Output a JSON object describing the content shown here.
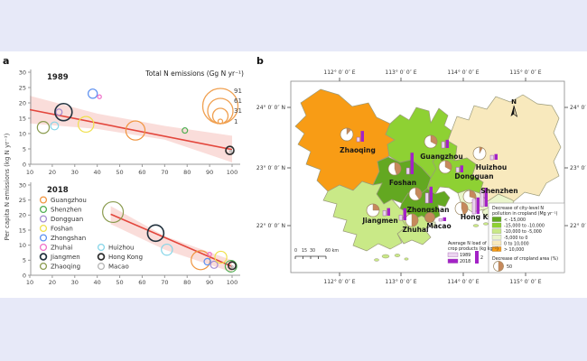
{
  "page": {
    "background": "#e7e9f8",
    "figure_background": "#ffffff"
  },
  "panel_a": {
    "label": "a",
    "ylabel": "Per capita N emissions (kg N yr⁻¹)",
    "xlabel": "Urbanization rate (%)",
    "size_legend": {
      "title": "Total N emissions (Gg N yr⁻¹)",
      "values": [
        91,
        61,
        31,
        1
      ],
      "arc_color": "#f0a050"
    },
    "trend_color": "#e3463c",
    "band_color": "#f8d2cd",
    "legend": {
      "col1": [
        "Guangzhou",
        "Shenzhen",
        "Dongguan",
        "Foshan",
        "Zhongshan",
        "Zhuhai",
        "Jiangmen",
        "Zhaoqing"
      ],
      "col2": [
        "Huizhou",
        "Hong Kong",
        "Macao"
      ]
    }
  },
  "city_colors": {
    "Guangzhou": "#f0953f",
    "Shenzhen": "#4fae52",
    "Dongguan": "#a58cd0",
    "Foshan": "#f0e04e",
    "Zhongshan": "#5b8ff0",
    "Zhuhai": "#ef6fc9",
    "Jiangmen": "#22323e",
    "Zhaoqing": "#8a9b4e",
    "Huizhou": "#86d5e8",
    "Hong Kong": "#2d2d2d",
    "Macao": "#b5b5b5"
  },
  "panel_b": {
    "label": "b",
    "lon_labels": [
      "112° 0′ 0″ E",
      "113° 0′ 0″ E",
      "114° 0′ 0″ E",
      "115° 0′ 0″ E"
    ],
    "lat_labels": [
      "24° 0′ 0″ N",
      "23° 0′ 0″ N",
      "22° 0′ 0″ N"
    ],
    "north_label": "N",
    "scale_bar_labels": [
      "0",
      "15",
      "30",
      "60 km"
    ],
    "legend_pollution": {
      "title_lines": [
        "Decrease of city-level N",
        "pollution in cropland (Mg yr⁻¹)"
      ],
      "items": [
        {
          "label": "< -15,000",
          "color": "#63a821"
        },
        {
          "label": "-15,000 to -10,000",
          "color": "#8ed133"
        },
        {
          "label": "-10,000 to -5,000",
          "color": "#c9e987"
        },
        {
          "label": "-5,000 to 0",
          "color": "#eaf5cb"
        },
        {
          "label": "0 to 10,000",
          "color": "#f8e9bd"
        },
        {
          "label": "> 10,000",
          "color": "#f89c15"
        }
      ]
    },
    "legend_cropland": {
      "title": "Decrease of cropland area (%)",
      "ref_label": "50",
      "pie_color": "#c6895c"
    },
    "legend_n_load": {
      "title_lines": [
        "Average N load of",
        "crop products (kg kg⁻¹)"
      ],
      "years": [
        {
          "label": "1989",
          "color": "#ecd4f0"
        },
        {
          "label": "2018",
          "color": "#a322c6"
        }
      ],
      "ref_label": "2"
    }
  },
  "chart_data": [
    {
      "type": "scatter",
      "title": "1989",
      "xlabel": "Urbanization rate (%)",
      "ylabel": "Per capita N emissions (kg N yr⁻¹)",
      "xlim": [
        10,
        100
      ],
      "ylim": [
        0,
        30
      ],
      "xticks": [
        10,
        20,
        30,
        40,
        50,
        60,
        70,
        80,
        90,
        100
      ],
      "yticks": [
        0,
        5,
        10,
        15,
        20,
        25,
        30
      ],
      "size_variable": "Total N emissions (Gg N yr⁻¹)",
      "trend": {
        "x1": 10,
        "y1": 17.8,
        "x2": 100,
        "y2": 4.8
      },
      "band": [
        [
          10,
          22.3
        ],
        [
          40,
          16.5
        ],
        [
          70,
          12.5
        ],
        [
          100,
          9.3
        ],
        [
          100,
          0.6
        ],
        [
          70,
          8.0
        ],
        [
          40,
          11.5
        ],
        [
          10,
          13.3
        ]
      ],
      "points": [
        {
          "city": "Zhaoqing",
          "x": 16,
          "y": 12,
          "size": 30
        },
        {
          "city": "Huizhou",
          "x": 21,
          "y": 12.5,
          "size": 13
        },
        {
          "city": "Dongguan",
          "x": 23,
          "y": 17,
          "size": 8
        },
        {
          "city": "Jiangmen",
          "x": 25,
          "y": 17,
          "size": 62
        },
        {
          "city": "Foshan",
          "x": 35,
          "y": 13,
          "size": 52
        },
        {
          "city": "Zhongshan",
          "x": 38,
          "y": 23,
          "size": 18
        },
        {
          "city": "Zhuhai",
          "x": 41,
          "y": 22,
          "size": 3
        },
        {
          "city": "Guangzhou",
          "x": 57,
          "y": 11,
          "size": 78
        },
        {
          "city": "Shenzhen",
          "x": 79,
          "y": 11,
          "size": 6
        },
        {
          "city": "Hong Kong",
          "x": 99,
          "y": 4.5,
          "size": 14
        },
        {
          "city": "Macao",
          "x": 99.5,
          "y": 4.2,
          "size": 1
        }
      ]
    },
    {
      "type": "scatter",
      "title": "2018",
      "xlabel": "Urbanization rate (%)",
      "ylabel": "Per capita N emissions (kg N yr⁻¹)",
      "xlim": [
        10,
        100
      ],
      "ylim": [
        0,
        30
      ],
      "xticks": [
        10,
        20,
        30,
        40,
        50,
        60,
        70,
        80,
        90,
        100
      ],
      "yticks": [
        0,
        5,
        10,
        15,
        20,
        25,
        30
      ],
      "size_variable": "Total N emissions (Gg N yr⁻¹)",
      "trend": {
        "x1": 46,
        "y1": 20.3,
        "x2": 100,
        "y2": 2.9
      },
      "band": [
        [
          46,
          23
        ],
        [
          70,
          13
        ],
        [
          100,
          5
        ],
        [
          100,
          1
        ],
        [
          70,
          8.5
        ],
        [
          46,
          17
        ]
      ],
      "points": [
        {
          "city": "Zhaoqing",
          "x": 47,
          "y": 21,
          "size": 91
        },
        {
          "city": "Jiangmen",
          "x": 66,
          "y": 14,
          "size": 56
        },
        {
          "city": "Huizhou",
          "x": 71,
          "y": 8.5,
          "size": 26
        },
        {
          "city": "Guangzhou",
          "x": 86,
          "y": 5,
          "size": 76
        },
        {
          "city": "Zhongshan",
          "x": 89,
          "y": 4.5,
          "size": 9
        },
        {
          "city": "Zhuhai",
          "x": 90,
          "y": 7,
          "size": 3
        },
        {
          "city": "Dongguan",
          "x": 92,
          "y": 3.5,
          "size": 11
        },
        {
          "city": "Foshan",
          "x": 95,
          "y": 6,
          "size": 30
        },
        {
          "city": "Shenzhen",
          "x": 99.5,
          "y": 3,
          "size": 28
        },
        {
          "city": "Hong Kong",
          "x": 100,
          "y": 3.2,
          "size": 12
        },
        {
          "city": "Macao",
          "x": 100,
          "y": 2.8,
          "size": 1
        }
      ]
    },
    {
      "type": "map",
      "title": "Pearl River Delta city-level N pollution map",
      "cities": [
        {
          "name": "Zhaoqing",
          "pollution_category": "> 10,000",
          "cropland_decrease_pct": 12,
          "n_load_1989": 0.7,
          "n_load_2018": 1.7
        },
        {
          "name": "Guangzhou",
          "pollution_category": "-15,000 to -10,000",
          "cropland_decrease_pct": 33,
          "n_load_1989": 1.0,
          "n_load_2018": 1.3
        },
        {
          "name": "Huizhou",
          "pollution_category": "0 to 10,000",
          "cropland_decrease_pct": 8,
          "n_load_1989": 0.7,
          "n_load_2018": 0.9
        },
        {
          "name": "Foshan",
          "pollution_category": "< -15,000",
          "cropland_decrease_pct": 45,
          "n_load_1989": 1.0,
          "n_load_2018": 3.4
        },
        {
          "name": "Dongguan",
          "pollution_category": "-15,000 to -10,000",
          "cropland_decrease_pct": 33,
          "n_load_1989": 0.8,
          "n_load_2018": 1.1
        },
        {
          "name": "Zhongshan",
          "pollution_category": "< -15,000",
          "cropland_decrease_pct": 40,
          "n_load_1989": 1.6,
          "n_load_2018": 2.6
        },
        {
          "name": "Shenzhen",
          "pollution_category": "-5,000 to 0",
          "cropland_decrease_pct": 30,
          "n_load_1989": 2.6,
          "n_load_2018": 3.0
        },
        {
          "name": "Hong Kong",
          "pollution_category": "-5,000 to 0",
          "cropland_decrease_pct": 45,
          "n_load_1989": 2.3,
          "n_load_2018": 2.6
        },
        {
          "name": "Macao",
          "pollution_category": "-5,000 to 0",
          "cropland_decrease_pct": 100,
          "n_load_1989": 0.4,
          "n_load_2018": 0.6
        },
        {
          "name": "Zhuhai",
          "pollution_category": "-10,000 to -5,000",
          "cropland_decrease_pct": 50,
          "n_load_1989": 0.8,
          "n_load_2018": 1.9
        },
        {
          "name": "Jiangmen",
          "pollution_category": "-10,000 to -5,000",
          "cropland_decrease_pct": 25,
          "n_load_1989": 0.8,
          "n_load_2018": 1.2
        }
      ]
    }
  ]
}
